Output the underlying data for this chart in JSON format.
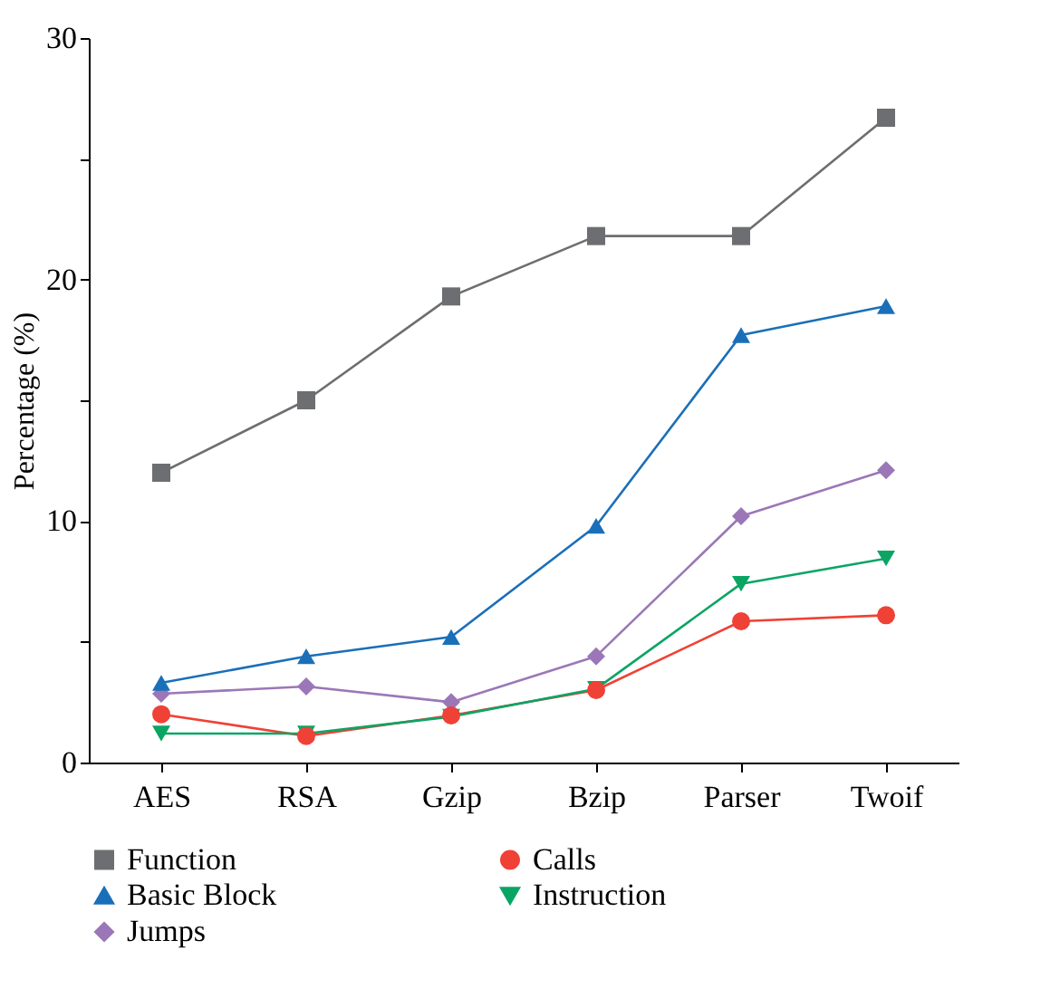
{
  "chart_data": {
    "type": "line",
    "ylabel": "Percentage (%)",
    "categories": [
      "AES",
      "RSA",
      "Gzip",
      "Bzip",
      "Parser",
      "Twoif"
    ],
    "series": [
      {
        "name": "Function",
        "color": "#6d6e71",
        "marker": "square",
        "values": [
          12.0,
          15.0,
          19.3,
          21.8,
          21.8,
          26.7
        ]
      },
      {
        "name": "Calls",
        "color": "#ef4136",
        "marker": "circle",
        "values": [
          2.0,
          1.1,
          1.95,
          3.0,
          5.85,
          6.1
        ]
      },
      {
        "name": "Basic Block",
        "color": "#1a6fb9",
        "marker": "triangle",
        "values": [
          3.3,
          4.4,
          5.2,
          9.8,
          17.7,
          18.9
        ]
      },
      {
        "name": "Instruction",
        "color": "#0aa564",
        "marker": "triangle-down",
        "values": [
          1.2,
          1.2,
          1.9,
          3.05,
          7.4,
          8.45
        ]
      },
      {
        "name": "Jumps",
        "color": "#9b77b7",
        "marker": "diamond",
        "values": [
          2.85,
          3.15,
          2.5,
          4.4,
          10.2,
          12.1
        ]
      }
    ],
    "ylim": [
      0,
      30
    ],
    "yticks": [
      0,
      {
        "value": 5,
        "label": null
      },
      10,
      {
        "value": 15,
        "label": null
      },
      20,
      {
        "value": 25,
        "label": null
      },
      30
    ],
    "grid": false,
    "legend": "bottom",
    "line_style": "solid"
  }
}
